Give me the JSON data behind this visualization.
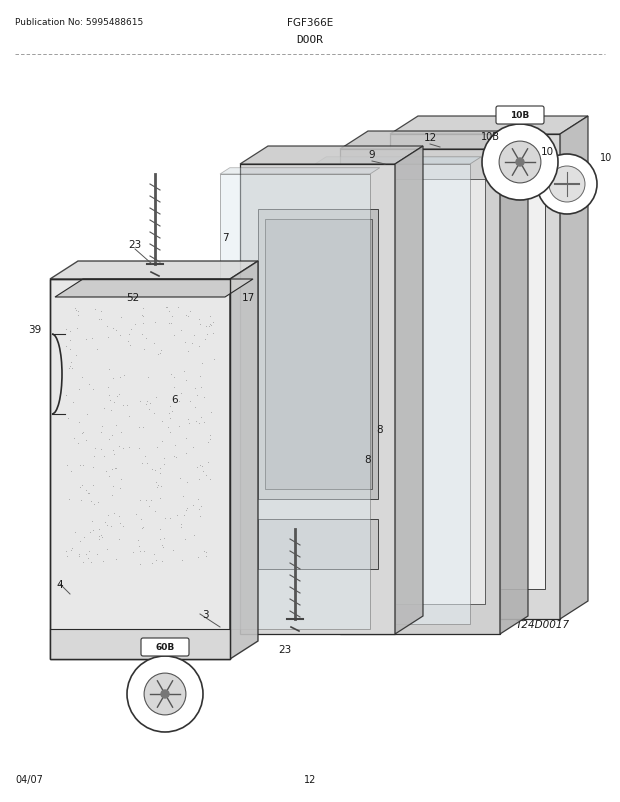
{
  "pub_no": "Publication No: 5995488615",
  "model": "FGF366E",
  "diagram_title": "DOOR",
  "footer_left": "04/07",
  "footer_center": "12",
  "ref_code": "T24D0017",
  "bg_color": "#ffffff",
  "line_color": "#2a2a2a",
  "text_color": "#1a1a1a",
  "gray1": "#e8e8e8",
  "gray2": "#d5d5d5",
  "gray3": "#c0c0c0",
  "gray4": "#a8a8a8",
  "gray5": "#888888",
  "dark_gray": "#444444",
  "watermark_color": "#cccccc"
}
